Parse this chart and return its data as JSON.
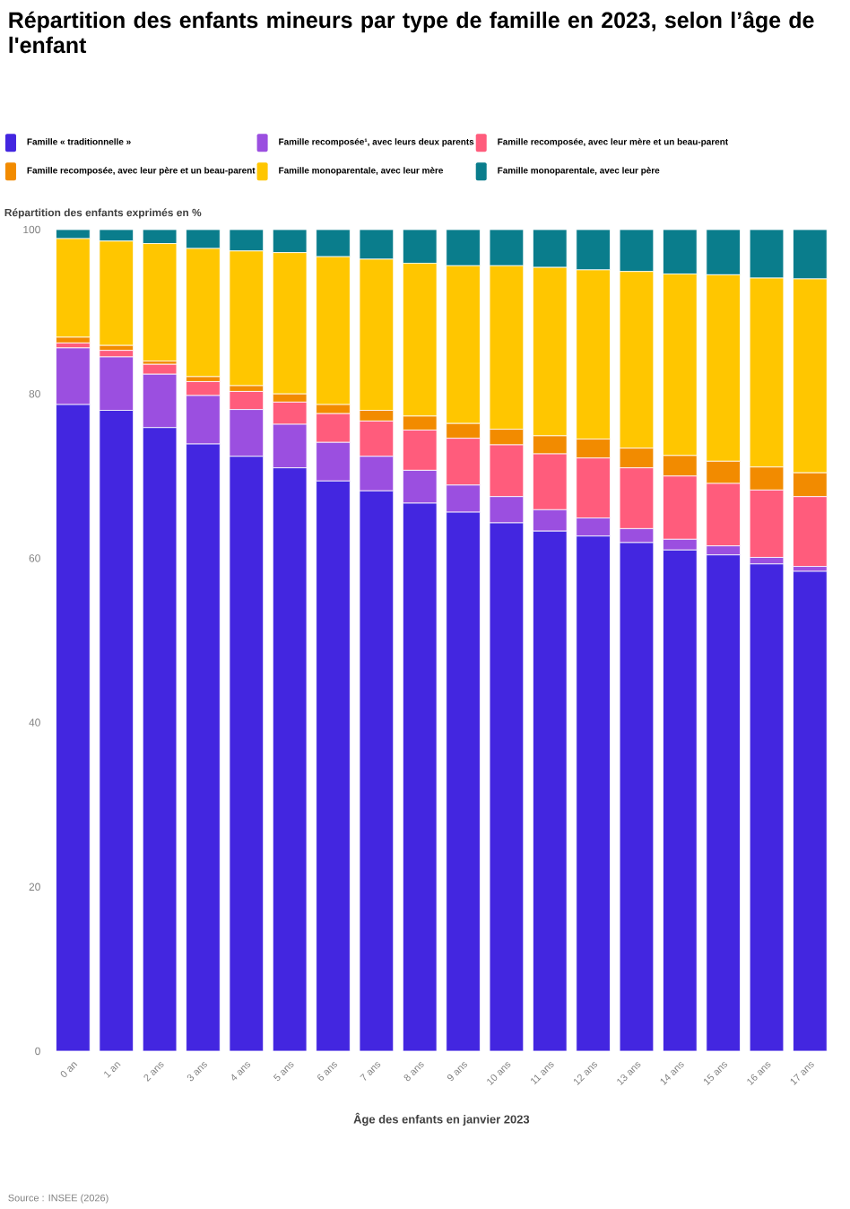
{
  "chart_data": {
    "type": "bar",
    "stacked": true,
    "title": "Répartition des enfants mineurs par type de famille en 2023, selon l’âge de l'enfant",
    "ylabel": "Répartition des enfants exprimés en %",
    "xlabel": "Âge des enfants en janvier 2023",
    "annotations": [
      "Source : INSEE (2026)"
    ],
    "categories": [
      "0 an",
      "1 an",
      "2 ans",
      "3 ans",
      "4 ans",
      "5 ans",
      "6 ans",
      "7 ans",
      "8 ans",
      "9 ans",
      "10 ans",
      "11 ans",
      "12 ans",
      "13 ans",
      "14 ans",
      "15 ans",
      "16 ans",
      "17 ans"
    ],
    "series": [
      {
        "name": "Famille « traditionnelle »",
        "color": "#4326e0",
        "values": [
          78.7,
          78.0,
          75.9,
          73.9,
          72.4,
          71.0,
          69.4,
          68.2,
          66.7,
          65.6,
          64.3,
          63.3,
          62.7,
          61.9,
          61.0,
          60.4,
          59.3,
          58.4
        ]
      },
      {
        "name": "Famille recomposée¹, avec leurs deux parents",
        "color": "#9b4fe0",
        "values": [
          6.9,
          6.5,
          6.5,
          5.9,
          5.7,
          5.3,
          4.7,
          4.2,
          4.0,
          3.3,
          3.2,
          2.6,
          2.2,
          1.7,
          1.3,
          1.1,
          0.8,
          0.6
        ]
      },
      {
        "name": "Famille recomposée, avec leur mère et un beau-parent",
        "color": "#ff5c7c",
        "values": [
          0.6,
          0.8,
          1.2,
          1.7,
          2.2,
          2.7,
          3.5,
          4.3,
          4.9,
          5.7,
          6.3,
          6.8,
          7.3,
          7.4,
          7.7,
          7.6,
          8.2,
          8.5
        ]
      },
      {
        "name": "Famille recomposée, avec leur père et un beau-parent",
        "color": "#f28b00",
        "values": [
          0.7,
          0.6,
          0.4,
          0.6,
          0.7,
          1.0,
          1.1,
          1.3,
          1.7,
          1.8,
          1.9,
          2.2,
          2.3,
          2.4,
          2.5,
          2.7,
          2.8,
          2.9
        ]
      },
      {
        "name": "Famille monoparentale, avec leur mère",
        "color": "#ffc600",
        "values": [
          12.0,
          12.7,
          14.3,
          15.6,
          16.4,
          17.2,
          18.0,
          18.4,
          18.6,
          19.2,
          19.9,
          20.5,
          20.6,
          21.5,
          22.1,
          22.7,
          23.0,
          23.6
        ]
      },
      {
        "name": "Famille monoparentale, avec leur père",
        "color": "#0a7d8c",
        "values": [
          1.1,
          1.4,
          1.7,
          2.3,
          2.6,
          2.8,
          3.3,
          3.6,
          4.1,
          4.4,
          4.4,
          4.6,
          4.9,
          5.1,
          5.4,
          5.5,
          5.9,
          6.0
        ]
      }
    ],
    "ylim": [
      0,
      100
    ],
    "yticks": [
      0,
      20,
      40,
      60,
      80,
      100
    ],
    "legend": "top",
    "grid": false
  }
}
